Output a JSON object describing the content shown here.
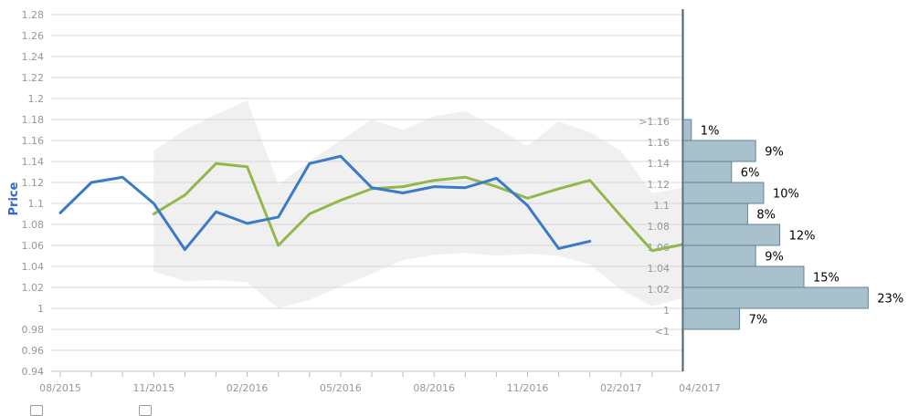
{
  "chart_data": [
    {
      "type": "line",
      "title": "",
      "yaxis": {
        "title": "Price",
        "min": 0.94,
        "max": 1.28,
        "step": 0.02,
        "tick_labels": [
          "1.28",
          "1.26",
          "1.24",
          "1.22",
          "1.2",
          "1.18",
          "1.16",
          "1.14",
          "1.12",
          "1.1",
          "1.08",
          "1.06",
          "1.04",
          "1.02",
          "1",
          "0.98",
          "0.96",
          "0.94"
        ]
      },
      "xaxis": {
        "unit": "month",
        "first_month": "08/2015",
        "last_month": "04/2017",
        "tick_labels": [
          "08/2015",
          "11/2015",
          "02/2016",
          "05/2016",
          "08/2016",
          "11/2016",
          "02/2017",
          "04/2017"
        ]
      },
      "grid": true,
      "band": {
        "name": "forecast-range-band",
        "color": "#f0f0f0",
        "start_index": 3,
        "upper": [
          1.15,
          1.17,
          1.185,
          1.198,
          1.118,
          1.14,
          1.16,
          1.18,
          1.17,
          1.183,
          1.188,
          1.172,
          1.155,
          1.178,
          1.168,
          1.15,
          1.11,
          1.115
        ],
        "lower": [
          1.035,
          1.026,
          1.027,
          1.025,
          1.0,
          1.008,
          1.021,
          1.033,
          1.046,
          1.051,
          1.053,
          1.05,
          1.052,
          1.05,
          1.042,
          1.018,
          1.002,
          1.01
        ]
      },
      "series": [
        {
          "name": "green-series",
          "color": "#92b84c",
          "start_index": 3,
          "values": [
            1.09,
            1.108,
            1.138,
            1.135,
            1.06,
            1.09,
            1.103,
            1.114,
            1.116,
            1.122,
            1.125,
            1.116,
            1.105,
            1.114,
            1.122,
            1.088,
            1.055,
            1.061
          ]
        },
        {
          "name": "blue-series",
          "color": "#3b7ac7",
          "start_index": 0,
          "values": [
            1.091,
            1.12,
            1.125,
            1.1,
            1.056,
            1.092,
            1.081,
            1.087,
            1.138,
            1.145,
            1.115,
            1.11,
            1.116,
            1.115,
            1.124,
            1.098,
            1.057,
            1.064
          ]
        }
      ]
    },
    {
      "type": "bar",
      "orientation": "horizontal",
      "name": "price-distribution-histogram",
      "bucket_boundary_labels": [
        ">1.16",
        "1.16",
        "1.14",
        "1.12",
        "1.1",
        "1.08",
        "1.06",
        "1.04",
        "1.02",
        "1",
        "<1"
      ],
      "values": [
        1,
        9,
        6,
        10,
        8,
        12,
        9,
        15,
        23,
        7
      ],
      "value_labels": [
        "1%",
        "9%",
        "6%",
        "10%",
        "8%",
        "12%",
        "9%",
        "15%",
        "23%",
        "7%"
      ],
      "bar_fill": "#a9c1cc",
      "bar_stroke": "#628495",
      "axis_line_color": "#44606c"
    }
  ]
}
